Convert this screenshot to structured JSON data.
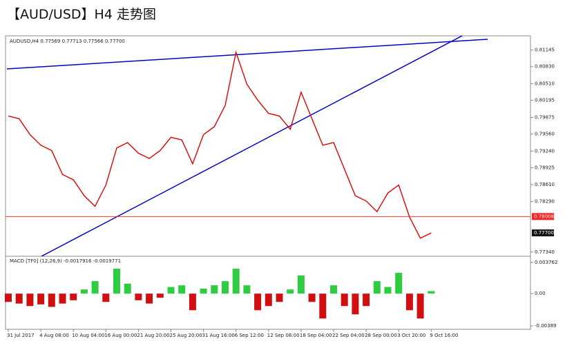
{
  "title": "【AUD/USD】H4 走势图",
  "chart_data": [
    {
      "type": "line",
      "header": "AUDUSD,H4  0.77569 0.77713 0.77566 0.77700",
      "color": "#e00000",
      "categories": [
        "31 Jul 2017",
        null,
        null,
        "4 Aug 08:00",
        null,
        null,
        "10 Aug 04:00",
        null,
        null,
        "16 Aug 00:00",
        null,
        null,
        "21 Aug 20:00",
        null,
        null,
        "25 Aug 20:00",
        null,
        null,
        "31 Aug 16:00",
        null,
        null,
        "6 Sep 12:00",
        null,
        null,
        "12 Sep 08:00",
        null,
        null,
        "18 Sep 04:00",
        null,
        null,
        "22 Sep 04:00",
        null,
        null,
        "28 Sep 00:00",
        null,
        null,
        "3 Oct 20:00",
        null,
        null,
        "9 Oct 16:00"
      ],
      "values": [
        0.799,
        0.7985,
        0.7955,
        0.7935,
        0.7925,
        0.788,
        0.787,
        0.784,
        0.782,
        0.786,
        0.793,
        0.794,
        0.792,
        0.791,
        0.7925,
        0.795,
        0.7945,
        0.79,
        0.7955,
        0.797,
        0.801,
        0.811,
        0.805,
        0.802,
        0.7995,
        0.799,
        0.7965,
        0.8035,
        0.7985,
        0.7935,
        0.794,
        0.789,
        0.784,
        0.783,
        0.781,
        0.7845,
        0.786,
        0.78,
        0.776,
        0.777
      ],
      "ylim": [
        0.7726,
        0.8141
      ],
      "yticks": [
        0.81145,
        {
          "value": 0.8083,
          "label": "0.80830"
        },
        {
          "value": 0.8051,
          "label": "0.80510"
        },
        0.80195,
        0.79875,
        {
          "value": 0.7956,
          "label": "0.79560"
        },
        {
          "value": 0.7924,
          "label": "0.79240"
        },
        0.78925,
        {
          "value": 0.7861,
          "label": "0.78610"
        },
        {
          "value": 0.7829,
          "label": "0.78290"
        },
        {
          "value": 0.7734,
          "label": "0.77340"
        }
      ],
      "hline": 0.78008,
      "last": {
        "value": 0.777,
        "label": "0.77700"
      }
    },
    {
      "type": "histogram-bar",
      "header": "MACD [TF0] (12,26,9) -0.0017916 -0.0019771",
      "values": [
        -0.001,
        -0.0012,
        -0.0015,
        -0.0013,
        -0.0016,
        -0.0012,
        -0.0008,
        0.0005,
        0.0015,
        -0.001,
        0.003,
        0.0012,
        -0.0008,
        -0.0012,
        -0.0005,
        0.0008,
        0.001,
        -0.002,
        0.0006,
        0.001,
        0.0015,
        0.003,
        0.001,
        -0.002,
        -0.0015,
        -0.001,
        0.0005,
        0.0022,
        -0.001,
        -0.003,
        0.001,
        -0.0015,
        -0.0025,
        -0.0015,
        0.0015,
        0.0008,
        0.0025,
        -0.002,
        -0.003,
        0.0003
      ],
      "colors": {
        "up": "#2ecc40",
        "down": "#d01010"
      },
      "ylim": [
        -0.0043,
        0.0045
      ],
      "yticks": [
        0.003762,
        {
          "value": 0,
          "label": "0.00"
        },
        -0.00389
      ]
    }
  ]
}
